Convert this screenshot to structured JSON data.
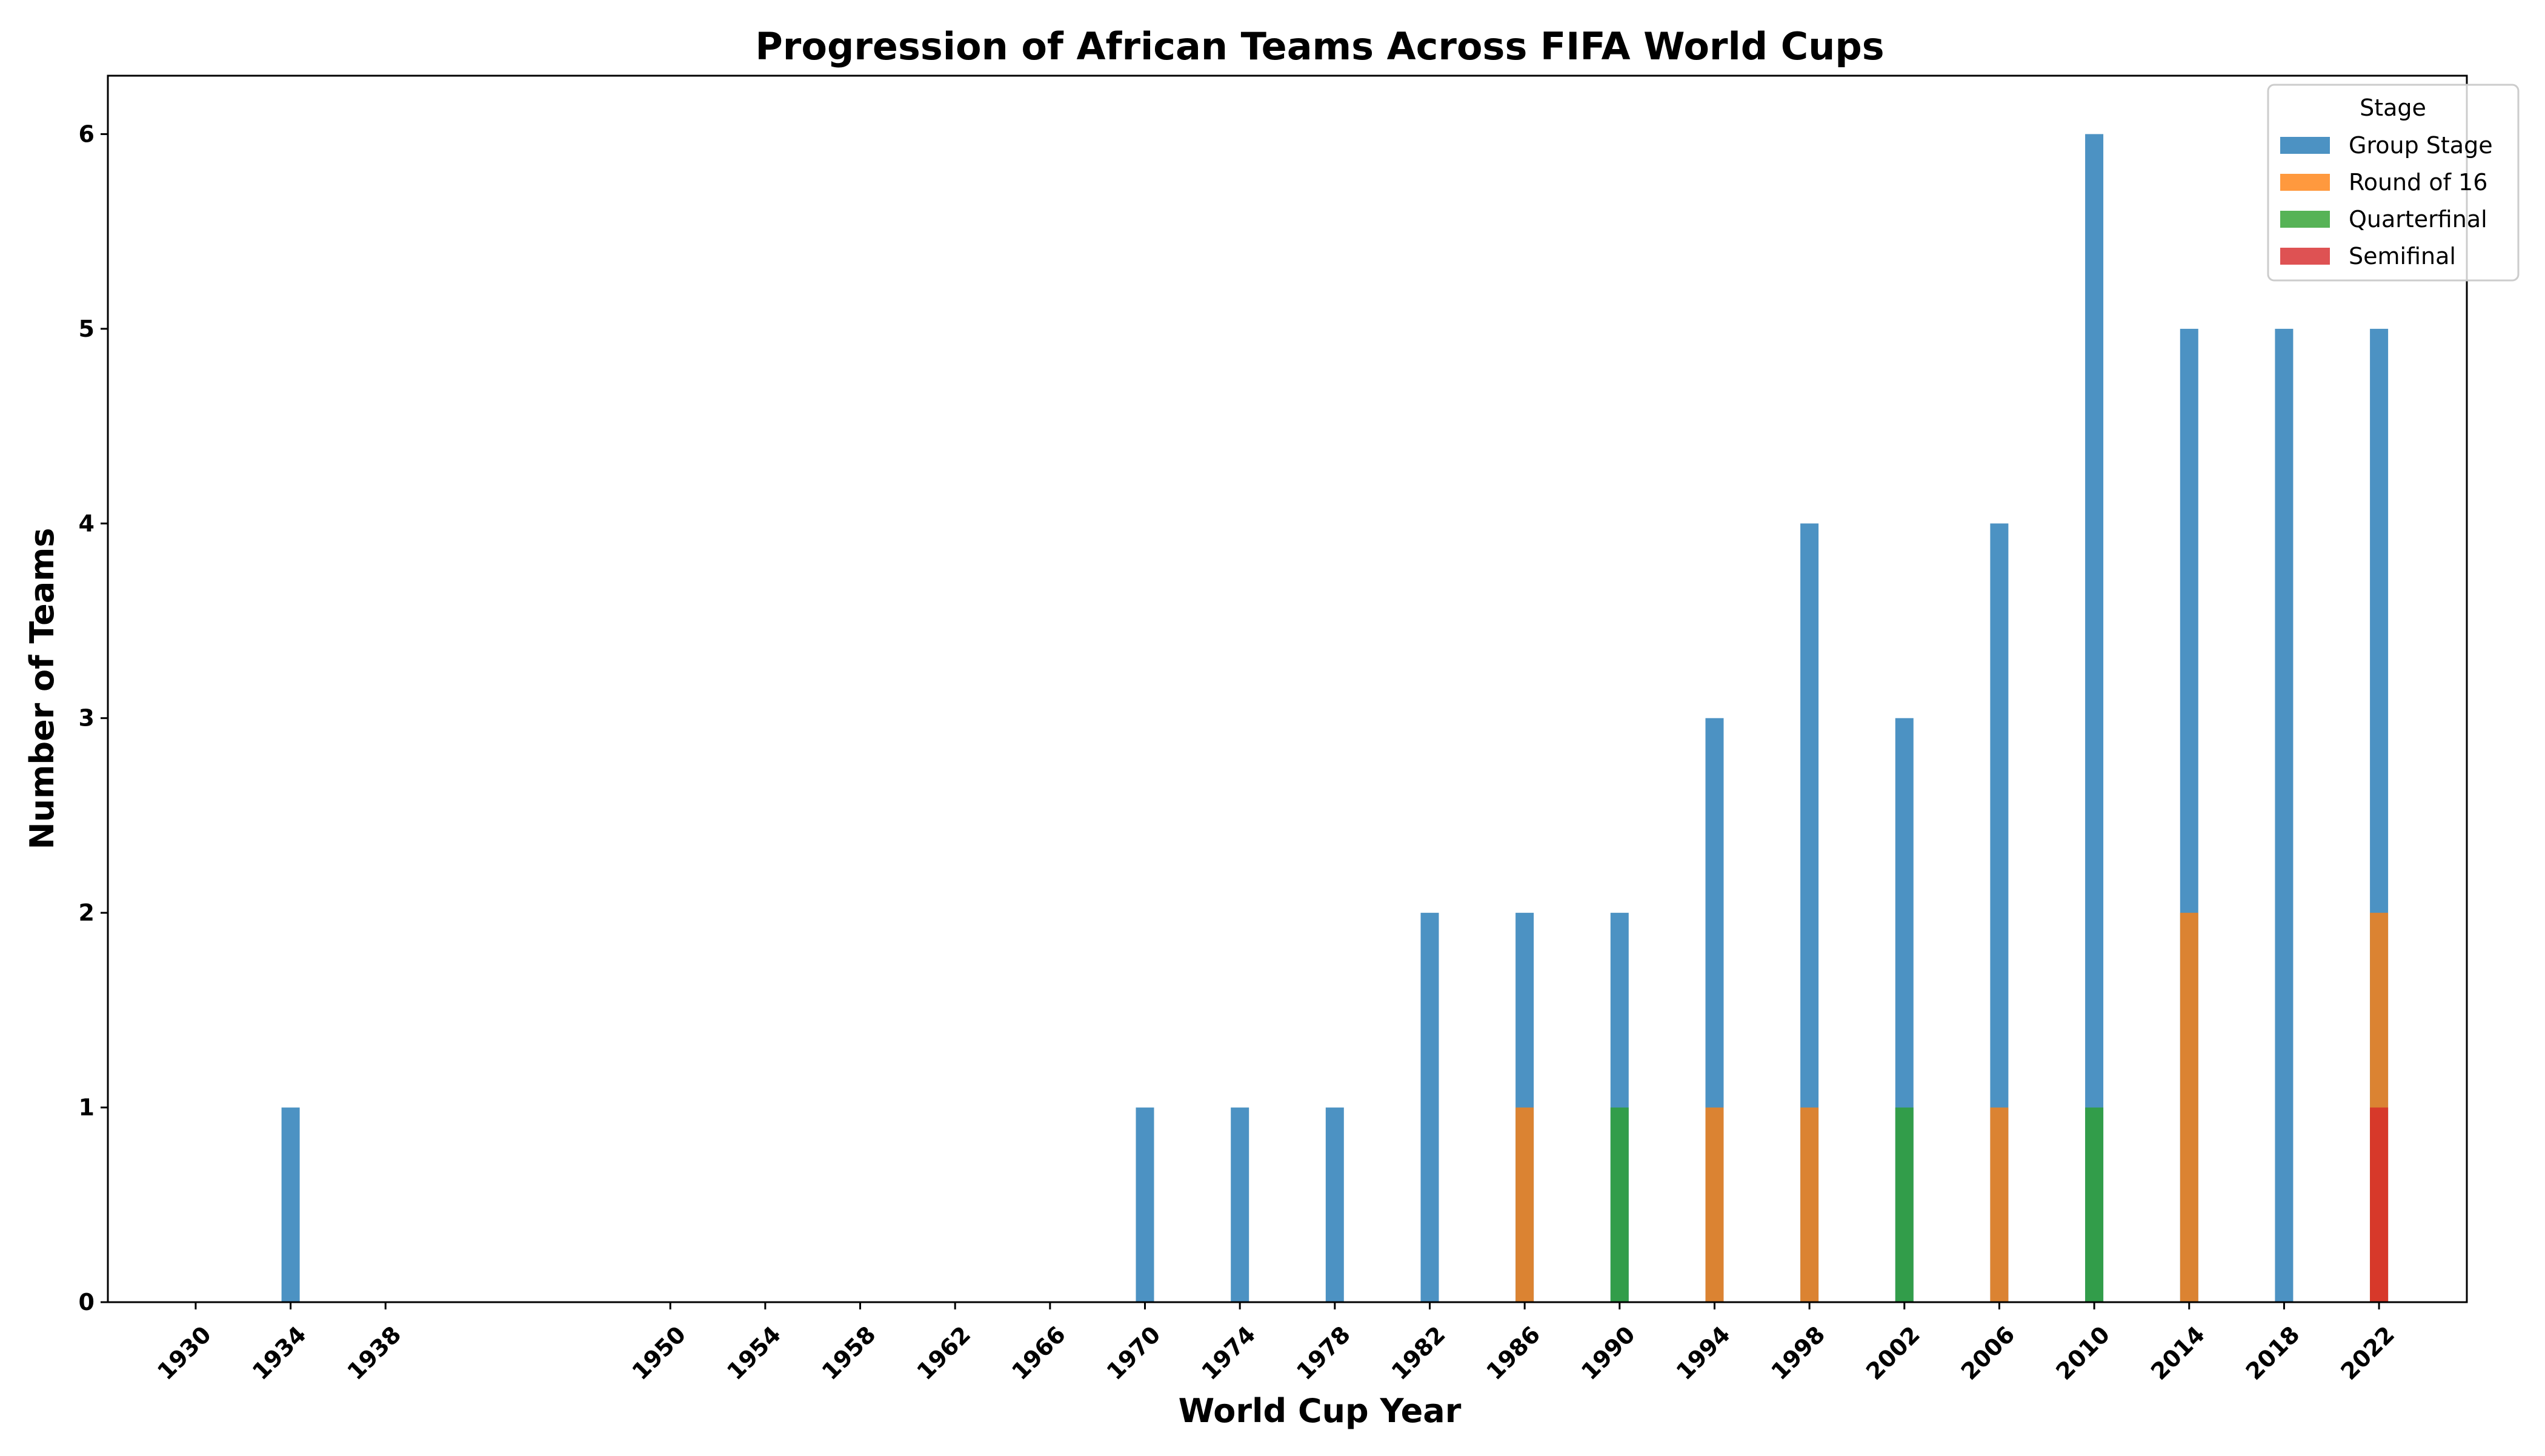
{
  "chart_data": {
    "type": "bar",
    "title": "Progression of African Teams Across FIFA World Cups",
    "xlabel": "World Cup Year",
    "ylabel": "Number of Teams",
    "x": [
      1930,
      1934,
      1938,
      1950,
      1954,
      1958,
      1962,
      1966,
      1970,
      1974,
      1978,
      1982,
      1986,
      1990,
      1994,
      1998,
      2002,
      2006,
      2010,
      2014,
      2018,
      2022
    ],
    "x_tick_labels": [
      "1930",
      "1934",
      "1938",
      "1950",
      "1954",
      "1958",
      "1962",
      "1966",
      "1970",
      "1974",
      "1978",
      "1982",
      "1986",
      "1990",
      "1994",
      "1998",
      "2002",
      "2006",
      "2010",
      "2014",
      "2018",
      "2022"
    ],
    "ylim": [
      0,
      6.3
    ],
    "y_ticks": [
      0,
      1,
      2,
      3,
      4,
      5,
      6
    ],
    "y_tick_labels": [
      "0",
      "1",
      "2",
      "3",
      "4",
      "5",
      "6"
    ],
    "grid": false,
    "legend": {
      "title": "Stage",
      "placement": "top-right"
    },
    "series": [
      {
        "name": "Group Stage",
        "color": "#1f77b4",
        "values": [
          0,
          1,
          0,
          0,
          0,
          0,
          0,
          0,
          1,
          1,
          1,
          2,
          2,
          2,
          3,
          4,
          3,
          4,
          6,
          5,
          5,
          5
        ]
      },
      {
        "name": "Round of 16",
        "color": "#ff7f0e",
        "values": [
          0,
          0,
          0,
          0,
          0,
          0,
          0,
          0,
          0,
          0,
          0,
          0,
          1,
          0,
          1,
          1,
          0,
          1,
          0,
          2,
          0,
          2
        ]
      },
      {
        "name": "Quarterfinal",
        "color": "#2ca02c",
        "values": [
          0,
          0,
          0,
          0,
          0,
          0,
          0,
          0,
          0,
          0,
          0,
          0,
          0,
          1,
          0,
          0,
          1,
          0,
          1,
          0,
          0,
          0
        ]
      },
      {
        "name": "Semifinal",
        "color": "#d62728",
        "values": [
          0,
          0,
          0,
          0,
          0,
          0,
          0,
          0,
          0,
          0,
          0,
          0,
          0,
          0,
          0,
          0,
          0,
          0,
          0,
          0,
          0,
          1
        ]
      }
    ]
  }
}
